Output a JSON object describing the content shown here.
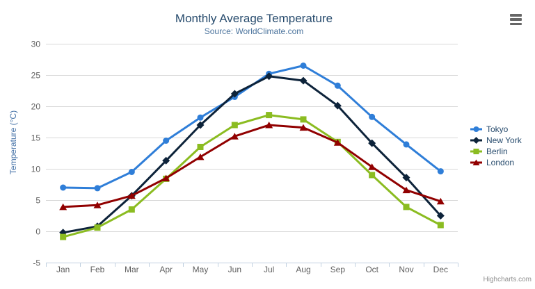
{
  "header": {
    "title": "Monthly Average Temperature",
    "subtitle": "Source: WorldClimate.com"
  },
  "menu": {
    "icon": "hamburger-icon"
  },
  "credits": {
    "label": "Highcharts.com"
  },
  "chart_data": {
    "type": "line",
    "title": "Monthly Average Temperature",
    "subtitle": "Source: WorldClimate.com",
    "xlabel": "",
    "ylabel": "Temperature (°C)",
    "ylim": [
      -5,
      30
    ],
    "yticks": [
      30,
      25,
      20,
      15,
      10,
      5,
      0,
      -5
    ],
    "grid": true,
    "legend_position": "right",
    "categories": [
      "Jan",
      "Feb",
      "Mar",
      "Apr",
      "May",
      "Jun",
      "Jul",
      "Aug",
      "Sep",
      "Oct",
      "Nov",
      "Dec"
    ],
    "series": [
      {
        "name": "Tokyo",
        "color": "#2f7ed8",
        "marker": "circle",
        "values": [
          7.0,
          6.9,
          9.5,
          14.5,
          18.2,
          21.5,
          25.2,
          26.5,
          23.3,
          18.3,
          13.9,
          9.6
        ]
      },
      {
        "name": "New York",
        "color": "#0d233a",
        "marker": "diamond",
        "values": [
          -0.2,
          0.8,
          5.7,
          11.3,
          17.0,
          22.0,
          24.8,
          24.1,
          20.1,
          14.1,
          8.6,
          2.5
        ]
      },
      {
        "name": "Berlin",
        "color": "#8bbc21",
        "marker": "square",
        "values": [
          -0.9,
          0.6,
          3.5,
          8.4,
          13.5,
          17.0,
          18.6,
          17.9,
          14.3,
          9.0,
          3.9,
          1.0
        ]
      },
      {
        "name": "London",
        "color": "#910000",
        "marker": "triangle",
        "values": [
          3.9,
          4.2,
          5.7,
          8.5,
          11.9,
          15.2,
          17.0,
          16.6,
          14.2,
          10.3,
          6.6,
          4.8
        ]
      }
    ],
    "style": {
      "grid_color": "#d8d8d8",
      "axis_line_color": "#c0d0e0",
      "tick_label_color": "#606060",
      "title_color": "#274b6d",
      "subtitle_color": "#4d759e",
      "yaxis_title_color": "#4572a7",
      "legend_text_color": "#274b6d",
      "credits_color": "#909090"
    }
  }
}
